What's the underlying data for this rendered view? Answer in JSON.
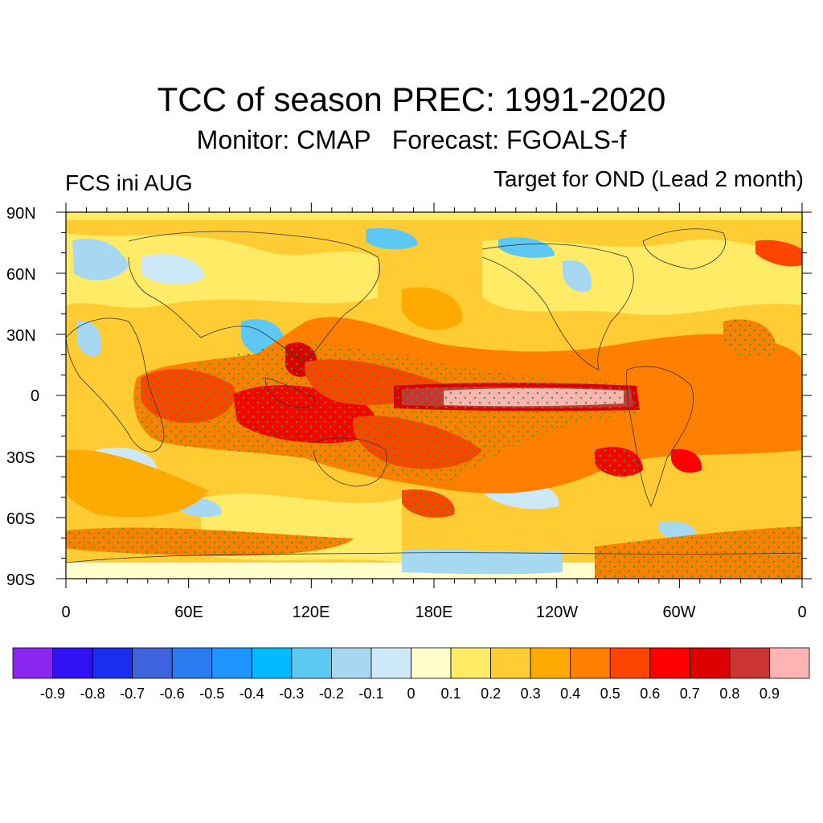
{
  "title": "TCC of season PREC: 1991-2020",
  "subtitle": "Monitor: CMAP   Forecast: FGOALS-f",
  "left_label": "FCS ini AUG",
  "right_label": "Target for OND (Lead 2 month)",
  "y_ticks": [
    "90N",
    "60N",
    "30N",
    "0",
    "30S",
    "60S",
    "90S"
  ],
  "x_ticks": [
    "0",
    "60E",
    "120E",
    "180E",
    "120W",
    "60W",
    "0"
  ],
  "colorbar": {
    "labels": [
      "-0.9",
      "-0.8",
      "-0.7",
      "-0.6",
      "-0.5",
      "-0.4",
      "-0.3",
      "-0.2",
      "-0.1",
      "0",
      "0.1",
      "0.2",
      "0.3",
      "0.4",
      "0.5",
      "0.6",
      "0.7",
      "0.8",
      "0.9"
    ],
    "colors": [
      "#8a26f0",
      "#3311f5",
      "#1a2ef0",
      "#3f62df",
      "#2a7bf0",
      "#1f95ff",
      "#00bbff",
      "#5ec8f5",
      "#a6d8f2",
      "#cde9f8",
      "#ffffcc",
      "#ffeb66",
      "#ffcc33",
      "#ffaa00",
      "#ff7f00",
      "#ff4400",
      "#ff0000",
      "#dd0000",
      "#cc3333",
      "#ffb3b3"
    ]
  }
}
